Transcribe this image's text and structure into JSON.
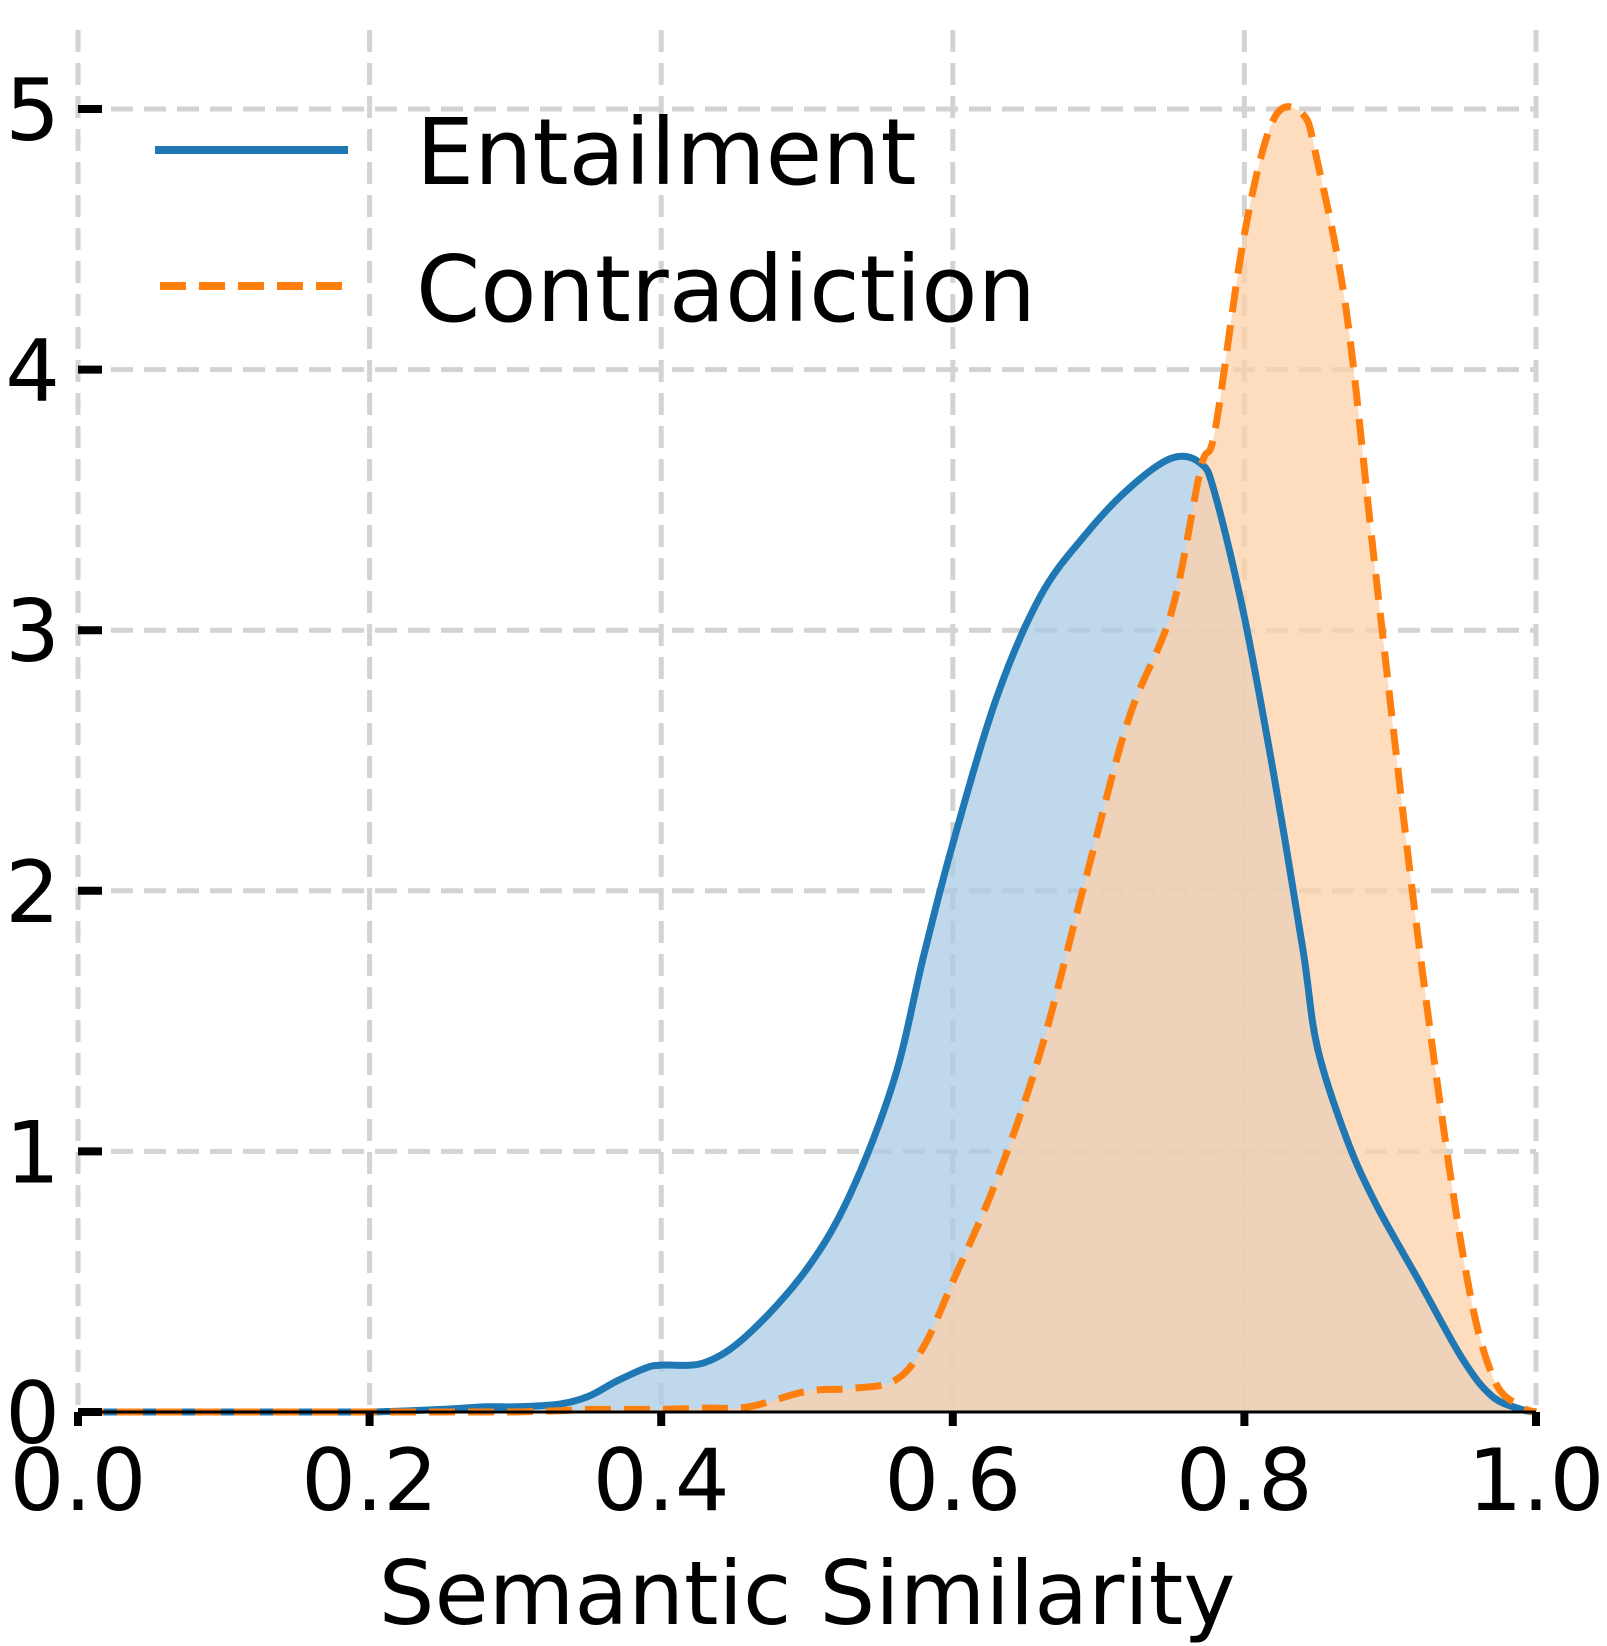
{
  "chart_data": {
    "type": "area",
    "title": "",
    "xlabel": "Semantic Similarity",
    "ylabel": "",
    "xlim": [
      0.0,
      1.0
    ],
    "ylim": [
      0,
      5
    ],
    "x_ticks": [
      "0.0",
      "0.2",
      "0.4",
      "0.6",
      "0.8",
      "1.0"
    ],
    "y_ticks": [
      "0",
      "1",
      "2",
      "3",
      "4",
      "5"
    ],
    "grid": true,
    "legend_position": "top-left",
    "x": [
      0.0,
      0.05,
      0.1,
      0.15,
      0.2,
      0.25,
      0.28,
      0.3,
      0.33,
      0.35,
      0.37,
      0.39,
      0.4,
      0.43,
      0.46,
      0.5,
      0.53,
      0.56,
      0.58,
      0.6,
      0.63,
      0.66,
      0.69,
      0.72,
      0.75,
      0.77,
      0.78,
      0.8,
      0.82,
      0.84,
      0.85,
      0.87,
      0.89,
      0.92,
      0.95,
      0.97,
      0.99,
      1.0
    ],
    "series": [
      {
        "name": "Entailment",
        "color": "#1f77b4",
        "fill": "#aacbe5",
        "line_style": "solid",
        "values": [
          0.0,
          0.0,
          0.0,
          0.0,
          0.0,
          0.01,
          0.02,
          0.02,
          0.03,
          0.06,
          0.12,
          0.17,
          0.18,
          0.19,
          0.3,
          0.55,
          0.84,
          1.28,
          1.75,
          2.18,
          2.74,
          3.13,
          3.36,
          3.54,
          3.66,
          3.64,
          3.52,
          3.05,
          2.45,
          1.78,
          1.4,
          1.05,
          0.8,
          0.5,
          0.2,
          0.06,
          0.01,
          0.0
        ]
      },
      {
        "name": "Contradiction",
        "color": "#ff7f0e",
        "fill": "#fdd0a8",
        "line_style": "dashed",
        "values": [
          0.0,
          0.0,
          0.0,
          0.0,
          0.0,
          0.0,
          0.0,
          0.0,
          0.005,
          0.01,
          0.01,
          0.01,
          0.01,
          0.015,
          0.02,
          0.08,
          0.09,
          0.12,
          0.25,
          0.5,
          0.89,
          1.38,
          2.02,
          2.65,
          3.07,
          3.62,
          3.77,
          4.52,
          4.96,
          4.98,
          4.8,
          4.22,
          3.22,
          1.78,
          0.6,
          0.14,
          0.02,
          0.0
        ]
      }
    ]
  }
}
